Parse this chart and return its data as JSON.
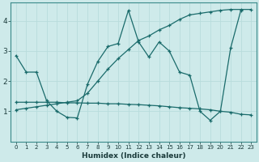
{
  "xlabel": "Humidex (Indice chaleur)",
  "bg_color": "#ceeaea",
  "line_color": "#1a6b6b",
  "grid_color_major": "#b8dcdc",
  "grid_color_minor": "#d0ecec",
  "xlim": [
    -0.5,
    23.5
  ],
  "ylim": [
    0,
    4.6
  ],
  "yticks": [
    1,
    2,
    3,
    4
  ],
  "xticks": [
    0,
    1,
    2,
    3,
    4,
    5,
    6,
    7,
    8,
    9,
    10,
    11,
    12,
    13,
    14,
    15,
    16,
    17,
    18,
    19,
    20,
    21,
    22,
    23
  ],
  "line1_x": [
    0,
    1,
    2,
    3,
    4,
    5,
    6,
    7,
    8,
    9,
    10,
    11,
    12,
    13,
    14,
    15,
    16,
    17,
    18,
    19,
    20,
    21,
    22,
    23
  ],
  "line1_y": [
    2.85,
    2.3,
    2.3,
    1.35,
    1.0,
    0.8,
    0.78,
    1.9,
    2.65,
    3.15,
    3.25,
    4.35,
    3.3,
    2.8,
    3.3,
    3.0,
    2.3,
    2.2,
    1.0,
    0.7,
    1.0,
    3.1,
    4.35,
    null
  ],
  "line2_x": [
    0,
    1,
    2,
    3,
    4,
    5,
    6,
    7,
    8,
    9,
    10,
    11,
    12,
    13,
    14,
    15,
    16,
    17,
    18,
    19,
    20,
    21,
    22,
    23
  ],
  "line2_y": [
    1.3,
    1.3,
    1.3,
    1.3,
    1.3,
    1.28,
    1.28,
    1.27,
    1.27,
    1.25,
    1.25,
    1.23,
    1.22,
    1.2,
    1.18,
    1.15,
    1.12,
    1.1,
    1.08,
    1.05,
    1.0,
    0.97,
    0.9,
    0.88
  ],
  "line3_x": [
    0,
    1,
    2,
    3,
    4,
    5,
    6,
    7,
    8,
    9,
    10,
    11,
    12,
    13,
    14,
    15,
    16,
    17,
    18,
    19,
    20,
    21,
    22,
    23
  ],
  "line3_y": [
    1.05,
    1.1,
    1.15,
    1.2,
    1.25,
    1.3,
    1.35,
    1.6,
    2.0,
    2.4,
    2.75,
    3.05,
    3.35,
    3.5,
    3.7,
    3.85,
    4.05,
    4.2,
    4.25,
    4.3,
    4.35,
    4.38,
    4.38,
    4.38
  ]
}
